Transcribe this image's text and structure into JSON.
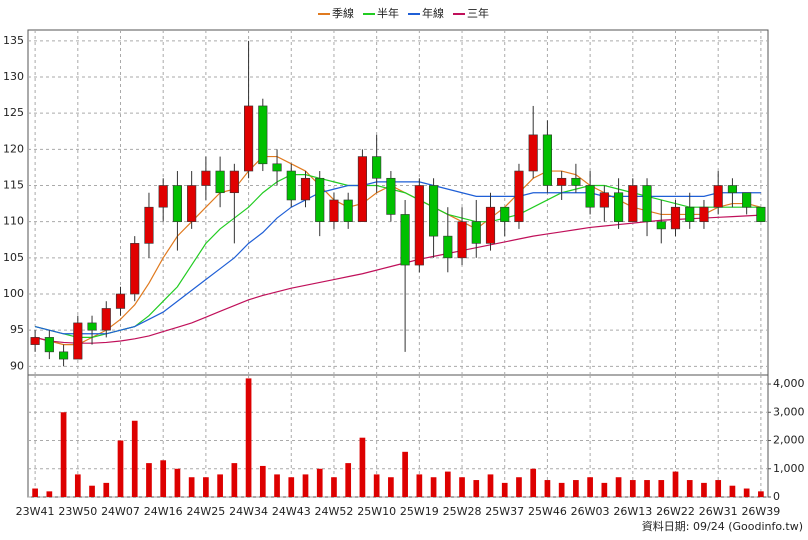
{
  "chart_data": {
    "type": "candlestick",
    "categories": [
      "23W41",
      null,
      null,
      "23W50",
      null,
      null,
      "24W07",
      null,
      null,
      "24W16",
      null,
      null,
      "24W25",
      null,
      null,
      "24W34",
      null,
      null,
      "24W43",
      null,
      null,
      "24W52",
      null,
      null,
      "25W10",
      null,
      null,
      "25W19",
      null,
      null,
      "25W28",
      null,
      null,
      "25W37",
      null,
      null,
      "25W46",
      null,
      null,
      "26W03",
      null,
      null,
      "26W13",
      null,
      null,
      "26W22",
      null,
      null,
      "26W31",
      null,
      null,
      "26W39"
    ],
    "open": [
      93,
      94,
      92,
      91,
      96,
      95,
      98,
      100,
      107,
      112,
      115,
      110,
      115,
      117,
      114,
      117,
      126,
      118,
      117,
      113,
      116,
      110,
      113,
      110,
      119,
      116,
      111,
      104,
      115,
      108,
      105,
      110,
      107,
      112,
      110,
      117,
      122,
      115,
      116,
      115,
      112,
      114,
      110,
      115,
      110,
      109,
      112,
      110,
      112,
      115,
      114,
      112
    ],
    "high": [
      95,
      95,
      93,
      97,
      97,
      99,
      101,
      108,
      114,
      116,
      117,
      117,
      119,
      119,
      118,
      135,
      127,
      120,
      118,
      117,
      117,
      114,
      114,
      120,
      122,
      117,
      113,
      116,
      116,
      112,
      112,
      113,
      114,
      112,
      118,
      126,
      124,
      117,
      118,
      117,
      115,
      116,
      116,
      116,
      113,
      113,
      114,
      113,
      117,
      116,
      114,
      112
    ],
    "low": [
      92,
      91,
      90,
      91,
      93,
      94,
      97,
      99,
      105,
      110,
      106,
      109,
      113,
      112,
      107,
      116,
      117,
      115,
      112,
      112,
      108,
      109,
      109,
      110,
      114,
      110,
      92,
      103,
      105,
      103,
      104,
      105,
      106,
      108,
      109,
      116,
      114,
      113,
      114,
      111,
      110,
      109,
      110,
      108,
      107,
      108,
      109,
      109,
      111,
      112,
      111,
      110
    ],
    "close": [
      94,
      92,
      91,
      96,
      95,
      98,
      100,
      107,
      112,
      115,
      110,
      115,
      117,
      114,
      117,
      126,
      118,
      117,
      113,
      116,
      110,
      113,
      110,
      119,
      116,
      111,
      104,
      115,
      108,
      105,
      110,
      107,
      112,
      110,
      117,
      122,
      115,
      116,
      115,
      112,
      114,
      110,
      115,
      110,
      109,
      112,
      110,
      112,
      115,
      114,
      112,
      110
    ],
    "up_color": "#e00000",
    "down_color": "#00c000",
    "series": [
      {
        "name": "季線",
        "color": "#e07a1f",
        "values": [
          94,
          93.5,
          93,
          93,
          94,
          95,
          96.5,
          98.5,
          101.5,
          105,
          108,
          110,
          112,
          114,
          114.5,
          117,
          119,
          119,
          118,
          117,
          115,
          113,
          112,
          112.5,
          114,
          115,
          114,
          113,
          112,
          111,
          110,
          109,
          110.5,
          112,
          114,
          116,
          117,
          117,
          116.5,
          115,
          114,
          113,
          112,
          111.5,
          111,
          111,
          111,
          111,
          112,
          112.5,
          112.5,
          112
        ]
      },
      {
        "name": "半年",
        "color": "#22cc22",
        "values": [
          95.5,
          95,
          94.5,
          94,
          94,
          94.5,
          95,
          95.5,
          97,
          99,
          101,
          104,
          107,
          109,
          110.5,
          112,
          114,
          115.5,
          116.5,
          116.5,
          116,
          115.5,
          115,
          115,
          115,
          114.5,
          114,
          113,
          112,
          111,
          110.5,
          110,
          110,
          110.5,
          111,
          112,
          113,
          114,
          114.5,
          115,
          115,
          114.5,
          114,
          113.5,
          113,
          112.5,
          112,
          112,
          112,
          112,
          112,
          112
        ]
      },
      {
        "name": "年線",
        "color": "#1f5fd6",
        "values": [
          95.5,
          95,
          94.5,
          94.5,
          94.5,
          94.5,
          95,
          95.5,
          96.5,
          97.5,
          99,
          100.5,
          102,
          103.5,
          105,
          107,
          108.5,
          110.5,
          112,
          113,
          114,
          114.5,
          115,
          115,
          115.5,
          115.5,
          115.5,
          115.5,
          115,
          114.5,
          114,
          113.5,
          113.5,
          113.5,
          113.5,
          114,
          114,
          114,
          114,
          114,
          113.5,
          113.5,
          113.5,
          113.5,
          113.5,
          113.5,
          113.5,
          113.5,
          114,
          114,
          114,
          114
        ]
      },
      {
        "name": "三年",
        "color": "#c0105a",
        "values": [
          94,
          93.5,
          93.3,
          93.2,
          93.2,
          93.3,
          93.5,
          93.8,
          94.2,
          94.8,
          95.4,
          96,
          96.8,
          97.6,
          98.4,
          99.2,
          99.8,
          100.3,
          100.8,
          101.2,
          101.6,
          102,
          102.4,
          102.8,
          103.3,
          103.8,
          104.3,
          104.8,
          105.2,
          105.6,
          106,
          106.4,
          106.8,
          107.2,
          107.6,
          108,
          108.3,
          108.6,
          108.9,
          109.2,
          109.4,
          109.6,
          109.8,
          110,
          110.2,
          110.3,
          110.4,
          110.5,
          110.6,
          110.7,
          110.8,
          110.9
        ]
      }
    ],
    "ylim": [
      88.8,
      136.5
    ],
    "yticks": [
      90,
      95,
      100,
      105,
      110,
      115,
      120,
      125,
      130,
      135
    ],
    "volume": {
      "color": "#dd0000",
      "values": [
        300,
        200,
        3000,
        800,
        400,
        500,
        2000,
        2700,
        1200,
        1300,
        1000,
        700,
        700,
        800,
        1200,
        4200,
        1100,
        800,
        700,
        800,
        1000,
        700,
        1200,
        2100,
        800,
        700,
        1600,
        800,
        700,
        900,
        700,
        600,
        800,
        500,
        700,
        1000,
        600,
        500,
        600,
        700,
        500,
        700,
        600,
        600,
        600,
        900,
        600,
        500,
        600,
        400,
        300,
        200
      ],
      "ylim": [
        0,
        4320
      ],
      "yticks": [
        0,
        {
          "value": 1000,
          "label": "1,000"
        },
        {
          "value": 2000,
          "label": "2,000"
        },
        {
          "value": 3000,
          "label": "3,000"
        },
        {
          "value": 4000,
          "label": "4,000"
        }
      ]
    },
    "grid": true,
    "legend": "top",
    "footer": "資料日期: 09/24  (Goodinfo.tw)"
  }
}
